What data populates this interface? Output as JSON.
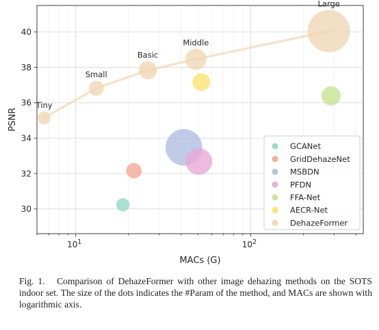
{
  "chart_data": {
    "type": "scatter",
    "x_scale": "log",
    "xlabel": "MACs (G)",
    "ylabel": "PSNR",
    "xlim": [
      6.0,
      440
    ],
    "ylim": [
      28.6,
      41.5
    ],
    "x_ticks": [
      {
        "value": 10,
        "base": "10",
        "exp": "1"
      },
      {
        "value": 100,
        "base": "10",
        "exp": "2"
      }
    ],
    "y_ticks": [
      30,
      32,
      34,
      36,
      38,
      40
    ],
    "grid": true,
    "legend_position": "lower-right",
    "series": [
      {
        "name": "GCANet",
        "color": "#8fd8c6",
        "points": [
          {
            "x": 18.6,
            "y": 30.23,
            "size": 0.16
          }
        ]
      },
      {
        "name": "GridDehazeNet",
        "color": "#f4a68f",
        "points": [
          {
            "x": 21.5,
            "y": 32.16,
            "size": 0.28
          }
        ]
      },
      {
        "name": "MSBDN",
        "color": "#aebde0",
        "points": [
          {
            "x": 41.5,
            "y": 33.48,
            "size": 3.1
          }
        ]
      },
      {
        "name": "PFDN",
        "color": "#e9a7d6",
        "points": [
          {
            "x": 50.5,
            "y": 32.68,
            "size": 1.3
          }
        ]
      },
      {
        "name": "FFA-Net",
        "color": "#c6e392",
        "points": [
          {
            "x": 288,
            "y": 36.39,
            "size": 0.6
          }
        ]
      },
      {
        "name": "AECR-Net",
        "color": "#f9e16b",
        "points": [
          {
            "x": 52.2,
            "y": 37.17,
            "size": 0.45
          }
        ]
      },
      {
        "name": "DehazeFormer",
        "color": "#f0d6b3",
        "points": [
          {
            "x": 6.6,
            "y": 35.15,
            "size": 0.14,
            "label": "Tiny"
          },
          {
            "x": 13.1,
            "y": 36.82,
            "size": 0.26,
            "label": "Small"
          },
          {
            "x": 25.8,
            "y": 37.84,
            "size": 0.5,
            "label": "Basic"
          },
          {
            "x": 48.6,
            "y": 38.46,
            "size": 0.78,
            "label": "Middle"
          },
          {
            "x": 279.7,
            "y": 40.05,
            "size": 4.5,
            "label": "Large"
          }
        ]
      }
    ],
    "trend": {
      "color": "#f0d6b3",
      "points": [
        [
          6.6,
          35.15
        ],
        [
          13.1,
          36.82
        ],
        [
          25.8,
          37.84
        ],
        [
          48.6,
          38.46
        ],
        [
          279.7,
          40.05
        ]
      ]
    }
  },
  "caption": {
    "label": "Fig. 1.",
    "text": "Comparison of DehazeFormer with other image dehazing methods on the SOTS indoor set. The size of the dots indicates the #Param of the method, and MACs are shown with logarithmic axis."
  }
}
